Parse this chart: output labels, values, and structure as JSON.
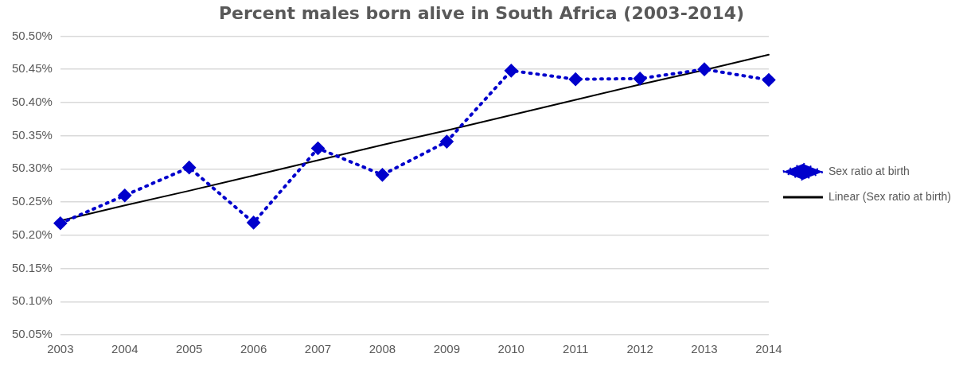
{
  "chart_data": {
    "type": "line",
    "title": "Percent males born alive in South Africa (2003-2014)",
    "categories": [
      "2003",
      "2004",
      "2005",
      "2006",
      "2007",
      "2008",
      "2009",
      "2010",
      "2011",
      "2012",
      "2013",
      "2014"
    ],
    "series": [
      {
        "name": "Sex ratio at birth",
        "color": "#0000cc",
        "marker": "diamond",
        "line_style": "dotted",
        "values": [
          50.218,
          50.26,
          50.302,
          50.219,
          50.331,
          50.291,
          50.341,
          50.448,
          50.435,
          50.436,
          50.45,
          50.434
        ]
      },
      {
        "name": "Linear (Sex ratio at birth)",
        "type": "line",
        "color": "#000000",
        "marker": "none",
        "line_style": "solid",
        "values": [
          50.222,
          50.245,
          50.267,
          50.29,
          50.313,
          50.336,
          50.358,
          50.381,
          50.404,
          50.427,
          50.449,
          50.472
        ]
      }
    ],
    "ylim": [
      50.05,
      50.5
    ],
    "yticks": [
      {
        "value": 50.05,
        "label": "50.05%"
      },
      {
        "value": 50.1,
        "label": "50.10%"
      },
      {
        "value": 50.15,
        "label": "50.15%"
      },
      {
        "value": 50.2,
        "label": "50.20%"
      },
      {
        "value": 50.25,
        "label": "50.25%"
      },
      {
        "value": 50.3,
        "label": "50.30%"
      },
      {
        "value": 50.35,
        "label": "50.35%"
      },
      {
        "value": 50.4,
        "label": "50.40%"
      },
      {
        "value": 50.45,
        "label": "50.45%"
      },
      {
        "value": 50.5,
        "label": "50.50%"
      }
    ],
    "grid": "y",
    "legend": "right"
  }
}
